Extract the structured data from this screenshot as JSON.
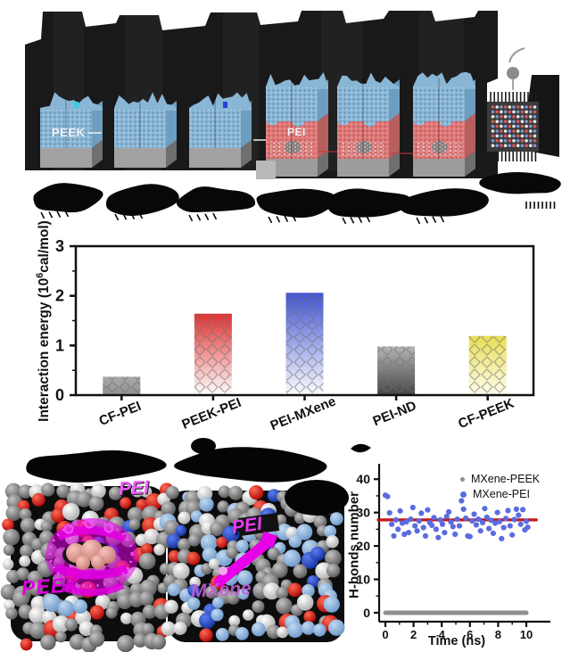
{
  "top": {
    "peek_label": "PEEK",
    "pei_label": "PEI"
  },
  "molecular": {
    "panel1": {
      "label_top": "PEI",
      "label_bottom": "PEEK"
    },
    "panel2": {
      "label_top": "PEI",
      "label_bottom": "MXene"
    },
    "highlight_color": "#e800e8"
  },
  "chart_data": [
    {
      "type": "bar",
      "title": "",
      "ylabel": "Interaction energy (10⁶cal/mol)",
      "ylabel_parts": {
        "pre": "Interaction energy (10",
        "sup": "6",
        "post": "cal/mol)"
      },
      "xlabel": "",
      "categories": [
        "CF-PEI",
        "PEEK-PEI",
        "PEI-MXene",
        "PEI-ND",
        "CF-PEEK"
      ],
      "values": [
        0.37,
        1.64,
        2.06,
        0.98,
        1.19
      ],
      "ylim": [
        0,
        3
      ],
      "yticks": [
        0,
        1,
        2,
        3
      ],
      "grid": false,
      "hatch": "diagonal-cross",
      "bar_colors_top": [
        "#a9a9a9",
        "#e03030",
        "#4054d2",
        "#b5b5b5",
        "#e8de52"
      ],
      "bar_colors_bottom": [
        "#909090",
        "#ffffff",
        "#fdfdff",
        "#454545",
        "#fffdf0"
      ]
    },
    {
      "type": "scatter",
      "xlabel": "Time (ns)",
      "ylabel": "H-bonds number",
      "xlim": [
        -0.5,
        11.5
      ],
      "ylim": [
        -3,
        45
      ],
      "xticks": [
        0,
        2,
        4,
        6,
        8,
        10
      ],
      "yticks": [
        0,
        10,
        20,
        30,
        40
      ],
      "legend": [
        "MXene-PEEK",
        "MXene-PEI"
      ],
      "legend_colors": [
        "#8f8f8f",
        "#5b6be0"
      ],
      "legend_position": "upper right",
      "mean_line": {
        "value": 27.8,
        "color": "#c41414",
        "x_range": [
          -0.6,
          10.8
        ]
      },
      "series": [
        {
          "name": "MXene-PEEK",
          "color": "#8f8f8f",
          "style": "baseline",
          "value": 0,
          "x_range": [
            0,
            10
          ]
        },
        {
          "name": "MXene-PEI",
          "color": "#5b6be0",
          "style": "points",
          "points": [
            [
              0.0,
              35.2
            ],
            [
              0.15,
              34.8
            ],
            [
              0.3,
              29.9
            ],
            [
              0.45,
              26.5
            ],
            [
              0.6,
              23.0
            ],
            [
              0.75,
              27.8
            ],
            [
              0.9,
              25.0
            ],
            [
              1.05,
              30.5
            ],
            [
              1.2,
              26.8
            ],
            [
              1.35,
              23.5
            ],
            [
              1.5,
              27.2
            ],
            [
              1.65,
              24.0
            ],
            [
              1.8,
              28.0
            ],
            [
              1.95,
              31.5
            ],
            [
              2.1,
              26.0
            ],
            [
              2.25,
              24.5
            ],
            [
              2.4,
              27.5
            ],
            [
              2.55,
              29.8
            ],
            [
              2.7,
              25.5
            ],
            [
              2.85,
              23.0
            ],
            [
              3.0,
              30.8
            ],
            [
              3.15,
              27.0
            ],
            [
              3.3,
              26.2
            ],
            [
              3.45,
              28.5
            ],
            [
              3.6,
              25.0
            ],
            [
              3.75,
              22.5
            ],
            [
              3.9,
              27.8
            ],
            [
              4.05,
              26.5
            ],
            [
              4.2,
              24.0
            ],
            [
              4.35,
              28.8
            ],
            [
              4.5,
              30.2
            ],
            [
              4.65,
              27.2
            ],
            [
              4.8,
              25.8
            ],
            [
              4.95,
              23.5
            ],
            [
              5.1,
              28.0
            ],
            [
              5.25,
              26.0
            ],
            [
              5.4,
              33.5
            ],
            [
              5.55,
              31.0
            ],
            [
              5.7,
              28.3
            ],
            [
              5.85,
              23.0
            ],
            [
              6.0,
              22.8
            ],
            [
              6.15,
              27.5
            ],
            [
              6.3,
              29.5
            ],
            [
              6.45,
              26.3
            ],
            [
              6.6,
              28.0
            ],
            [
              6.75,
              24.5
            ],
            [
              6.9,
              27.0
            ],
            [
              7.05,
              31.2
            ],
            [
              7.2,
              28.6
            ],
            [
              7.35,
              25.2
            ],
            [
              7.5,
              27.7
            ],
            [
              7.65,
              23.8
            ],
            [
              7.8,
              26.8
            ],
            [
              7.95,
              30.0
            ],
            [
              8.1,
              27.3
            ],
            [
              8.25,
              22.2
            ],
            [
              8.4,
              25.5
            ],
            [
              8.55,
              28.2
            ],
            [
              8.7,
              30.6
            ],
            [
              8.85,
              26.0
            ],
            [
              9.0,
              23.3
            ],
            [
              9.15,
              27.9
            ],
            [
              9.3,
              31.0
            ],
            [
              9.45,
              29.2
            ],
            [
              9.6,
              26.5
            ],
            [
              9.75,
              30.9
            ],
            [
              9.9,
              24.8
            ],
            [
              10.0,
              27.4
            ],
            [
              10.1,
              25.6
            ]
          ]
        }
      ]
    }
  ]
}
